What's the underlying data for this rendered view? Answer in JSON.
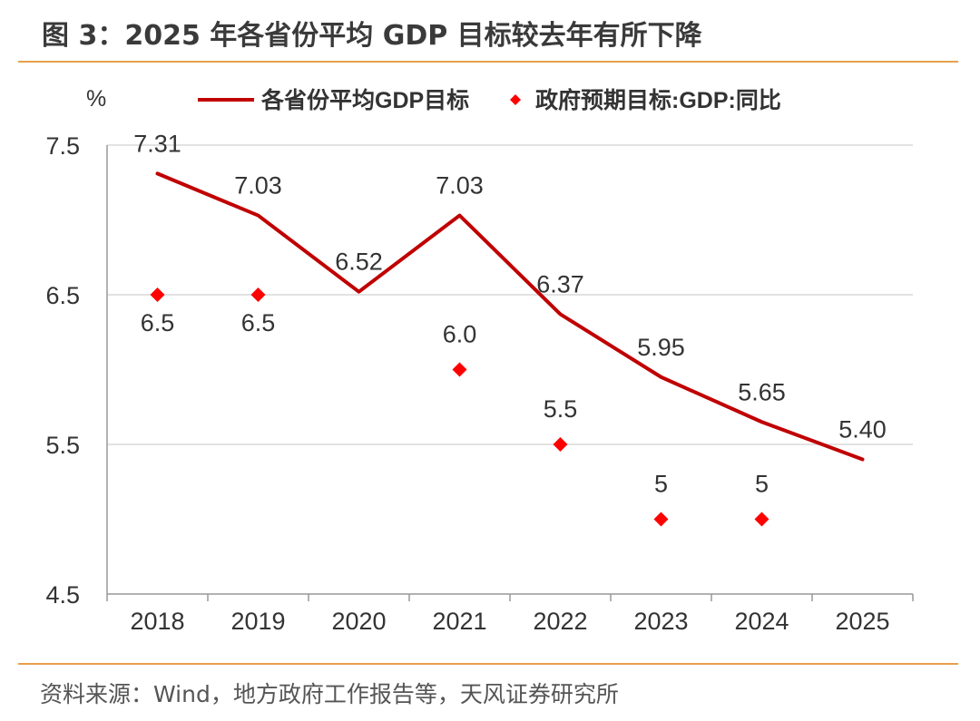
{
  "figure": {
    "title": "图 3：2025 年各省份平均 GDP 目标较去年有所下降",
    "source": "资料来源：Wind，地方政府工作报告等，天风证券研究所"
  },
  "chart_data": {
    "type": "line",
    "ylabel": "%",
    "ylim": [
      4.5,
      7.5
    ],
    "yticks": [
      "4.5",
      "5.5",
      "6.5",
      "7.5"
    ],
    "grid": true,
    "legend_position": "top",
    "categories": [
      "2018",
      "2019",
      "2020",
      "2021",
      "2022",
      "2023",
      "2024",
      "2025"
    ],
    "series": [
      {
        "name": "各省份平均GDP目标",
        "kind": "line",
        "color": "#c00000",
        "values": [
          7.31,
          7.03,
          6.52,
          7.03,
          6.37,
          5.95,
          5.65,
          5.4
        ],
        "labels": [
          "7.31",
          "7.03",
          "6.52",
          "7.03",
          "6.37",
          "5.95",
          "5.65",
          "5.40"
        ]
      },
      {
        "name": "政府预期目标:GDP:同比",
        "kind": "marker",
        "marker": "diamond",
        "color": "#ff0000",
        "values": [
          6.5,
          6.5,
          null,
          6.0,
          5.5,
          5,
          5,
          null
        ],
        "labels": [
          "6.5",
          "6.5",
          null,
          "6.0",
          "5.5",
          "5",
          "5",
          null
        ]
      }
    ]
  }
}
